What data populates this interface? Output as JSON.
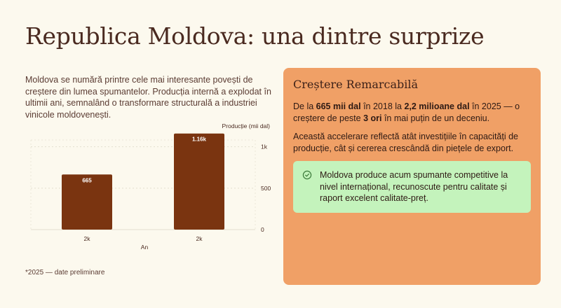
{
  "page": {
    "title": "Republica Moldova: una dintre surprize",
    "intro": "Moldova se numără printre cele mai interesante povești de creștere din lumea spumantelor. Producția internă a explodat în ultimii ani, semnalând o transformare structurală a industriei vinicole moldovenești.",
    "footnote": "*2025 — date preliminare"
  },
  "card": {
    "title": "Creștere Remarcabilă",
    "p1": {
      "t1": "De la ",
      "b1": "665 mii dal",
      "t2": " în 2018 la ",
      "b2": "2,2 milioane dal",
      "t3": " în 2025 — o creștere de peste ",
      "b3": "3 ori",
      "t4": " în mai puțin de un deceniu."
    },
    "p2": "Această accelerare reflectă atât investițiile în capacități de producție, cât și cererea crescândă din piețele de export.",
    "callout": "Moldova produce acum spumante competitive la nivel internațional, recunoscute pentru calitate și raport excelent calitate-preț.",
    "callout_icon": "check-circle-icon"
  },
  "colors": {
    "background": "#fcf9ee",
    "bar": "#7a3410",
    "card": "#f0a066",
    "callout": "#c4f3bc"
  },
  "chart_data": {
    "type": "bar",
    "categories": [
      "2k",
      "2k"
    ],
    "values": [
      665,
      1160
    ],
    "data_labels": [
      "665",
      "1.16k"
    ],
    "xlabel": "An",
    "ylabel": "Producție (mii dal)",
    "ylim": [
      0,
      1200
    ],
    "yticks": [
      0,
      500,
      1000
    ],
    "ytick_labels": [
      "0",
      "500",
      "1k"
    ],
    "y_axis_position": "right",
    "grid": true
  }
}
